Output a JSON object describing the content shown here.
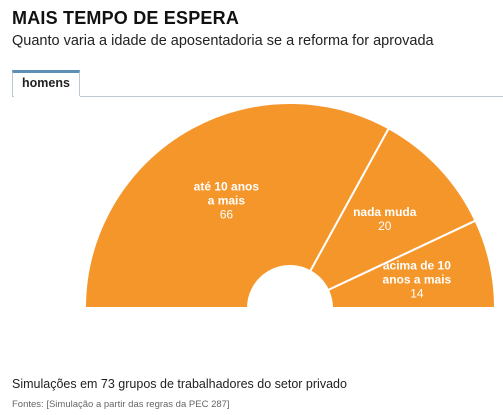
{
  "header": {
    "title": "MAIS TEMPO DE ESPERA",
    "subtitle": "Quanto varia a idade de aposentadoria se a reforma for aprovada"
  },
  "tabs": [
    {
      "label": "homens",
      "active": true
    }
  ],
  "chart_data": {
    "type": "pie",
    "variant": "semicircle-donut",
    "slices": [
      {
        "label_lines": [
          "até 10 anos",
          "a mais"
        ],
        "value": 66,
        "color": "#f5962a"
      },
      {
        "label_lines": [
          "nada muda"
        ],
        "value": 20,
        "color": "#f5962a"
      },
      {
        "label_lines": [
          "acima de 10",
          "anos a mais"
        ],
        "value": 14,
        "color": "#f5962a"
      }
    ],
    "total": 100
  },
  "footer": {
    "note": "Simulações em 73 grupos de trabalhadores do setor privado",
    "source": "Fontes: [Simulação a partir das regras da PEC 287]"
  },
  "colors": {
    "segment": "#f5962a",
    "separator": "#ffffff",
    "tab_accent": "#5e8fb4"
  }
}
